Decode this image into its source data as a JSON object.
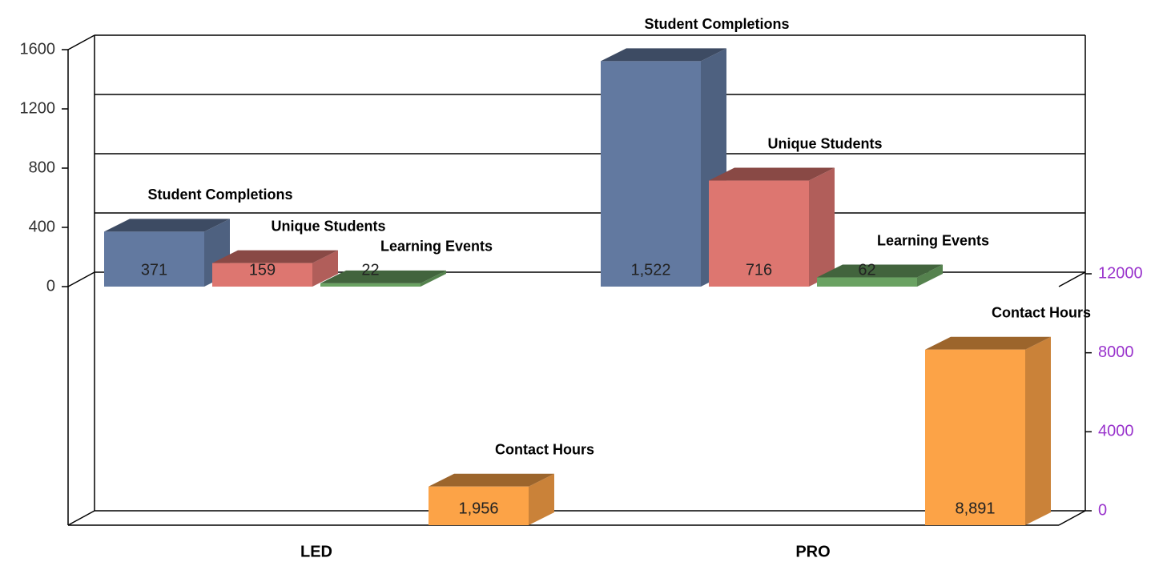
{
  "chart_data": {
    "type": "bar3d",
    "categories": [
      "LED",
      "PRO"
    ],
    "series": [
      {
        "name": "Student Completions",
        "color": "#6279a0",
        "values": [
          371,
          1522
        ],
        "value_labels": [
          "371",
          "1,522"
        ]
      },
      {
        "name": "Unique Students",
        "color": "#dd7670",
        "values": [
          159,
          716
        ],
        "value_labels": [
          "159",
          "716"
        ]
      },
      {
        "name": "Learning Events",
        "color": "#6aa262",
        "values": [
          22,
          62
        ],
        "value_labels": [
          "22",
          "62"
        ]
      },
      {
        "name": "Contact Hours",
        "color": "#fca347",
        "values": [
          1956,
          8891
        ],
        "value_labels": [
          "1,956",
          "8,891"
        ],
        "axis": "y2"
      }
    ],
    "ylim": [
      0,
      1600
    ],
    "yticks": [
      0,
      400,
      800,
      1200,
      1600
    ],
    "y2lim": [
      0,
      12000
    ],
    "y2ticks": [
      0,
      4000,
      8000,
      12000
    ],
    "grid": true,
    "y2_tick_color": "#9933cc"
  }
}
